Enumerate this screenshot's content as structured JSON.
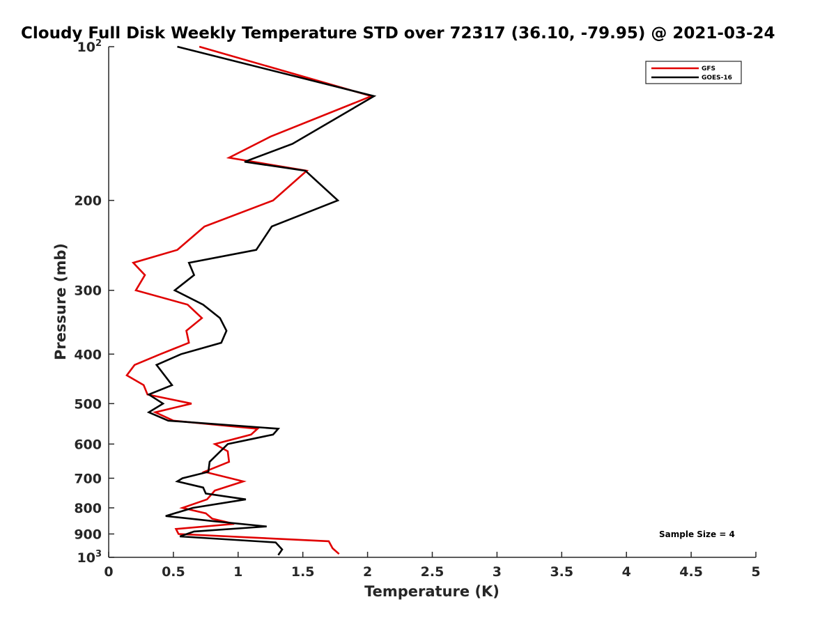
{
  "chart_data": {
    "type": "line",
    "title": "Cloudy Full Disk Weekly Temperature STD over 72317 (36.10, -79.95) @ 2021-03-24",
    "xlabel": "Temperature (K)",
    "ylabel": "Pressure (mb)",
    "xlim": [
      0,
      5
    ],
    "ylim": [
      100,
      1000
    ],
    "y_scale": "log",
    "y_reversed": true,
    "grid": false,
    "legend_position": "top-right",
    "x_ticks": [
      "0",
      "0.5",
      "1",
      "1.5",
      "2",
      "2.5",
      "3",
      "3.5",
      "4",
      "4.5",
      "5"
    ],
    "y_ticks": [
      {
        "value": 100,
        "base": "10",
        "exp": "2"
      },
      {
        "value": 200,
        "label": "200"
      },
      {
        "value": 300,
        "label": "300"
      },
      {
        "value": 400,
        "label": "400"
      },
      {
        "value": 500,
        "label": "500"
      },
      {
        "value": 600,
        "label": "600"
      },
      {
        "value": 700,
        "label": "700"
      },
      {
        "value": 800,
        "label": "800"
      },
      {
        "value": 900,
        "label": "900"
      },
      {
        "value": 1000,
        "base": "10",
        "exp": "3"
      }
    ],
    "annotation": "Sample Size = 4",
    "series": [
      {
        "name": "GFS",
        "color": "#e00000",
        "points": [
          [
            0.7,
            100
          ],
          [
            2.03,
            125
          ],
          [
            1.25,
            150
          ],
          [
            0.93,
            165
          ],
          [
            1.53,
            175
          ],
          [
            1.27,
            200
          ],
          [
            0.74,
            225
          ],
          [
            0.53,
            250
          ],
          [
            0.19,
            265
          ],
          [
            0.28,
            280
          ],
          [
            0.21,
            300
          ],
          [
            0.61,
            320
          ],
          [
            0.72,
            340
          ],
          [
            0.6,
            360
          ],
          [
            0.62,
            380
          ],
          [
            0.4,
            400
          ],
          [
            0.2,
            420
          ],
          [
            0.14,
            440
          ],
          [
            0.27,
            460
          ],
          [
            0.3,
            480
          ],
          [
            0.64,
            500
          ],
          [
            0.36,
            520
          ],
          [
            0.5,
            540
          ],
          [
            1.15,
            560
          ],
          [
            1.1,
            575
          ],
          [
            0.82,
            600
          ],
          [
            0.92,
            620
          ],
          [
            0.93,
            650
          ],
          [
            0.74,
            680
          ],
          [
            1.04,
            710
          ],
          [
            0.82,
            740
          ],
          [
            0.76,
            770
          ],
          [
            0.57,
            800
          ],
          [
            0.75,
            820
          ],
          [
            0.8,
            840
          ],
          [
            0.97,
            860
          ],
          [
            0.52,
            880
          ],
          [
            0.54,
            900
          ],
          [
            1.7,
            930
          ],
          [
            1.73,
            960
          ],
          [
            1.78,
            985
          ]
        ]
      },
      {
        "name": "GOES-16",
        "color": "#000000",
        "points": [
          [
            0.53,
            100
          ],
          [
            2.05,
            125
          ],
          [
            1.42,
            155
          ],
          [
            1.05,
            168
          ],
          [
            1.52,
            175
          ],
          [
            1.77,
            200
          ],
          [
            1.26,
            225
          ],
          [
            1.14,
            250
          ],
          [
            0.62,
            265
          ],
          [
            0.66,
            280
          ],
          [
            0.51,
            300
          ],
          [
            0.73,
            320
          ],
          [
            0.86,
            340
          ],
          [
            0.91,
            360
          ],
          [
            0.87,
            380
          ],
          [
            0.56,
            400
          ],
          [
            0.37,
            420
          ],
          [
            0.49,
            460
          ],
          [
            0.31,
            480
          ],
          [
            0.42,
            500
          ],
          [
            0.31,
            520
          ],
          [
            0.46,
            540
          ],
          [
            1.31,
            560
          ],
          [
            1.27,
            575
          ],
          [
            0.92,
            600
          ],
          [
            0.78,
            650
          ],
          [
            0.77,
            680
          ],
          [
            0.57,
            700
          ],
          [
            0.53,
            710
          ],
          [
            0.73,
            730
          ],
          [
            0.75,
            750
          ],
          [
            1.06,
            770
          ],
          [
            0.65,
            800
          ],
          [
            0.44,
            830
          ],
          [
            0.82,
            850
          ],
          [
            1.22,
            870
          ],
          [
            0.66,
            890
          ],
          [
            0.55,
            910
          ],
          [
            1.29,
            935
          ],
          [
            1.34,
            965
          ],
          [
            1.31,
            990
          ]
        ]
      }
    ]
  }
}
